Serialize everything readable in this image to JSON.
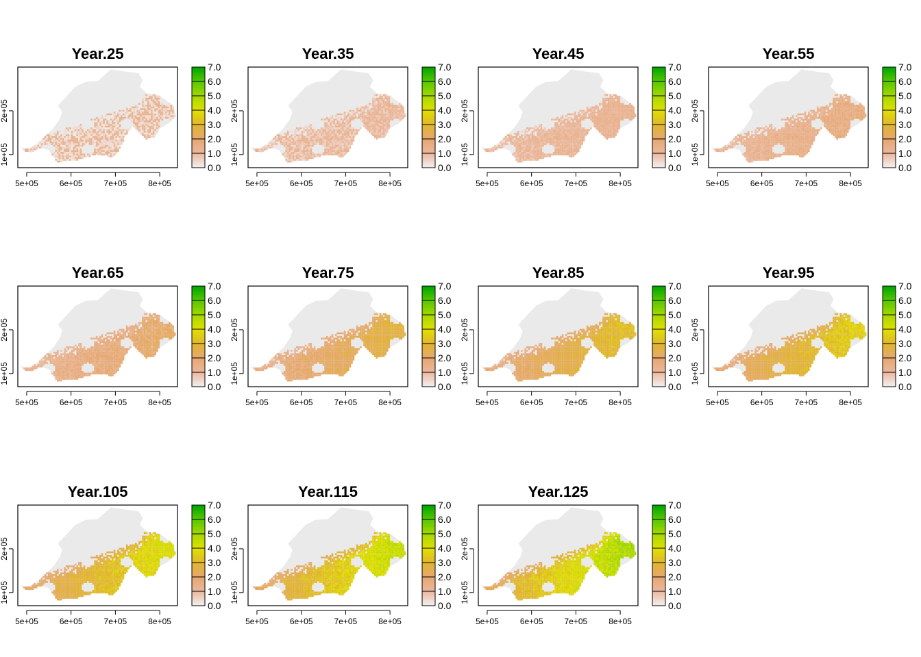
{
  "chart_data": {
    "type": "heatmap",
    "layout": {
      "rows": 3,
      "cols": 4
    },
    "panels": [
      {
        "title": "Year.25"
      },
      {
        "title": "Year.35"
      },
      {
        "title": "Year.45"
      },
      {
        "title": "Year.55"
      },
      {
        "title": "Year.65"
      },
      {
        "title": "Year.75"
      },
      {
        "title": "Year.85"
      },
      {
        "title": "Year.95"
      },
      {
        "title": "Year.105"
      },
      {
        "title": "Year.115"
      },
      {
        "title": "Year.125"
      }
    ],
    "x_axis": {
      "xlim": [
        480000,
        840000
      ],
      "ticks": [
        500000,
        600000,
        700000,
        800000
      ],
      "tick_labels": [
        "5e+05",
        "6e+05",
        "7e+05",
        "8e+05"
      ]
    },
    "y_axis": {
      "ylim": [
        70000,
        300000
      ],
      "ticks": [
        100000,
        200000
      ],
      "tick_labels": [
        "1e+05",
        "2e+05"
      ]
    },
    "legend": {
      "range": [
        0,
        7
      ],
      "ticks": [
        0,
        1,
        2,
        3,
        4,
        5,
        6,
        7
      ],
      "tick_labels": [
        "0.0",
        "1.0",
        "2.0",
        "3.0",
        "4.0",
        "5.0",
        "6.0",
        "7.0"
      ],
      "color_stops": [
        "#f2f2f2",
        "#ebb89e",
        "#e6a870",
        "#e0b52e",
        "#e0e000",
        "#a6d800",
        "#58c800",
        "#00a600"
      ]
    },
    "colors": {
      "background_region": "#eaeaea"
    }
  }
}
